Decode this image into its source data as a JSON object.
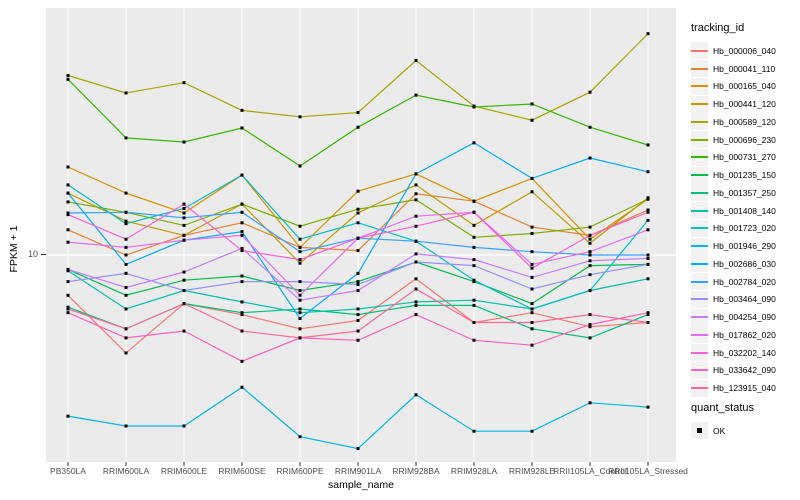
{
  "figure": {
    "y_axis_title": "FPKM + 1",
    "x_axis_title": "sample_name",
    "y_tick_label": "10",
    "legend_title": "tracking_id",
    "quant_legend_title": "quant_status",
    "quant_legend_item": "OK"
  },
  "colors": {
    "panel_bg": "#EBEBEB",
    "gridline": "#FFFFFF",
    "point": "#000000",
    "axis_text": "#4D4D4D",
    "legend_key_bg": "#F2F2F2"
  },
  "chart_data": {
    "type": "line",
    "title": "",
    "xlabel": "sample_name",
    "ylabel": "FPKM + 1",
    "y_scale": "log10",
    "y_ticks": [
      10
    ],
    "ylim": [
      1.6,
      89
    ],
    "grid": "major",
    "legend_position": "right",
    "legend_title": "tracking_id",
    "point_shape": "filled-black-square",
    "shape_legend": {
      "title": "quant_status",
      "items": [
        "OK"
      ]
    },
    "categories": [
      "PB350LA",
      "RRIM600LA",
      "RRIM600LE",
      "RRIM600SE",
      "RRIM600PE",
      "RRIM901LA",
      "RRIM928BA",
      "RRIM928LA",
      "RRIM928LE",
      "RRII105LA_Control",
      "RRII105LA_Stressed"
    ],
    "series": [
      {
        "name": "Hb_000006_040",
        "color": "#F8766D",
        "values": [
          7.0,
          4.2,
          6.5,
          5.9,
          5.2,
          5.6,
          8.1,
          5.5,
          6.0,
          5.3,
          5.5
        ]
      },
      {
        "name": "Hb_000041_110",
        "color": "#EA8331",
        "values": [
          12.5,
          10.0,
          11.9,
          13.3,
          10.7,
          10.4,
          17.2,
          16.1,
          12.8,
          11.9,
          14.9
        ]
      },
      {
        "name": "Hb_000165_040",
        "color": "#D89000",
        "values": [
          21.8,
          17.3,
          14.5,
          20.3,
          10.7,
          17.6,
          20.5,
          16.1,
          19.7,
          11.5,
          16.4
        ]
      },
      {
        "name": "Hb_000441_120",
        "color": "#C09B00",
        "values": [
          17.3,
          13.5,
          11.9,
          15.7,
          9.3,
          14.5,
          18.6,
          13.0,
          17.5,
          11.1,
          16.6
        ]
      },
      {
        "name": "Hb_000589_120",
        "color": "#A3A500",
        "values": [
          49.0,
          42.0,
          46.0,
          36.0,
          34.0,
          35.3,
          56.0,
          37.4,
          33.0,
          42.3,
          71.0
        ]
      },
      {
        "name": "Hb_000696_230",
        "color": "#7CAE00",
        "values": [
          16.0,
          14.6,
          13.0,
          15.7,
          12.9,
          15.0,
          16.3,
          11.7,
          12.1,
          12.8,
          16.4
        ]
      },
      {
        "name": "Hb_000731_270",
        "color": "#39B600",
        "values": [
          47.4,
          28.2,
          27.2,
          30.8,
          22.0,
          31.0,
          41.2,
          37.1,
          38.1,
          31.0,
          26.5
        ]
      },
      {
        "name": "Hb_001235_150",
        "color": "#00BB4E",
        "values": [
          8.8,
          7.0,
          8.0,
          8.3,
          7.3,
          7.9,
          9.4,
          7.9,
          6.5,
          9.1,
          9.2
        ]
      },
      {
        "name": "Hb_001357_250",
        "color": "#00BF7D",
        "values": [
          6.3,
          5.2,
          6.5,
          6.0,
          6.2,
          5.9,
          6.4,
          6.4,
          5.2,
          4.8,
          5.9
        ]
      },
      {
        "name": "Hb_001408_140",
        "color": "#00C1A7",
        "values": [
          8.7,
          6.2,
          7.3,
          6.6,
          6.0,
          6.2,
          6.6,
          6.7,
          6.2,
          7.3,
          8.1
        ]
      },
      {
        "name": "Hb_001723_020",
        "color": "#00BFC4",
        "values": [
          18.6,
          13.2,
          15.1,
          20.3,
          11.5,
          13.3,
          11.3,
          8.0,
          6.2,
          7.3,
          13.6
        ]
      },
      {
        "name": "Hb_001946_290",
        "color": "#00B8E5",
        "values": [
          2.4,
          2.2,
          2.2,
          3.1,
          2.0,
          1.8,
          2.9,
          2.1,
          2.1,
          2.7,
          2.6
        ]
      },
      {
        "name": "Hb_002686_030",
        "color": "#00ACFC",
        "values": [
          17.3,
          9.2,
          11.4,
          12.3,
          5.7,
          8.5,
          20.5,
          27.0,
          19.7,
          23.6,
          20.9
        ]
      },
      {
        "name": "Hb_002784_020",
        "color": "#35A2FF",
        "values": [
          14.5,
          14.6,
          13.9,
          14.6,
          10.3,
          11.6,
          11.3,
          10.7,
          10.3,
          10.0,
          10.0
        ]
      },
      {
        "name": "Hb_003464_090",
        "color": "#9590FF",
        "values": [
          7.9,
          8.5,
          7.3,
          7.9,
          7.9,
          7.7,
          9.4,
          9.1,
          7.4,
          8.4,
          9.2
        ]
      },
      {
        "name": "Hb_004254_090",
        "color": "#C77CFF",
        "values": [
          8.8,
          7.5,
          8.6,
          10.6,
          6.7,
          7.3,
          10.1,
          9.6,
          8.2,
          9.5,
          9.7
        ]
      },
      {
        "name": "Hb_017862_020",
        "color": "#E76BF3",
        "values": [
          11.2,
          10.7,
          11.4,
          11.9,
          7.0,
          11.6,
          14.1,
          14.6,
          9.2,
          10.3,
          12.5
        ]
      },
      {
        "name": "Hb_032202_140",
        "color": "#FA62DB",
        "values": [
          14.3,
          11.5,
          15.7,
          10.4,
          9.6,
          11.6,
          12.9,
          14.6,
          8.9,
          11.9,
          14.6
        ]
      },
      {
        "name": "Hb_033642_090",
        "color": "#FF62BC",
        "values": [
          6.0,
          4.8,
          5.1,
          3.9,
          4.8,
          4.7,
          5.9,
          4.7,
          4.5,
          5.4,
          6.0
        ]
      },
      {
        "name": "Hb_123915_040",
        "color": "#FF6A98",
        "values": [
          6.2,
          5.2,
          6.5,
          5.1,
          4.8,
          5.1,
          7.4,
          5.5,
          5.5,
          5.9,
          5.5
        ]
      }
    ]
  }
}
